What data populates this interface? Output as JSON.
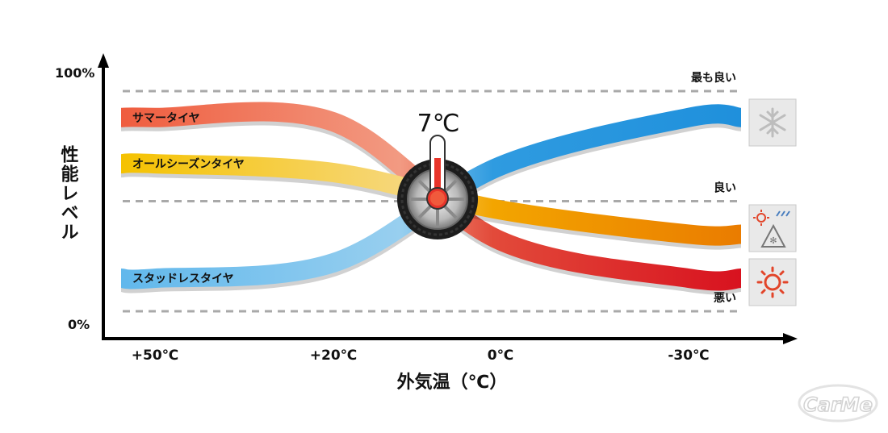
{
  "chart_data": {
    "type": "line",
    "title": "",
    "xlabel": "外気温（℃）",
    "ylabel": "性能レベル",
    "x_ticks": [
      "+50℃",
      "+20℃",
      "0℃",
      "-30℃"
    ],
    "x": [
      50,
      20,
      0,
      -30
    ],
    "ylim": [
      0,
      100
    ],
    "y_tick_labels": {
      "top": "100%",
      "bottom": "0%"
    },
    "reference_lines": [
      {
        "label": "最も良い",
        "value": 100
      },
      {
        "label": "良い",
        "value": 50
      },
      {
        "label": "悪い",
        "value": 0
      }
    ],
    "crossover_label": "7℃",
    "crossover_x": 7,
    "series": [
      {
        "name": "サマータイヤ",
        "values": [
          88,
          86,
          32,
          15
        ],
        "color": "#e8583f"
      },
      {
        "name": "オールシーズンタイヤ",
        "values": [
          67,
          63,
          46,
          35
        ],
        "color": "#f2a516"
      },
      {
        "name": "スタッドレスタイヤ",
        "values": [
          15,
          22,
          66,
          88
        ],
        "color": "#3aa6e0"
      }
    ],
    "grid": false,
    "legend": "none",
    "icons": [
      "snowflake-icon",
      "sun-snow-icon",
      "sun-icon"
    ],
    "watermark": "CarMe"
  }
}
